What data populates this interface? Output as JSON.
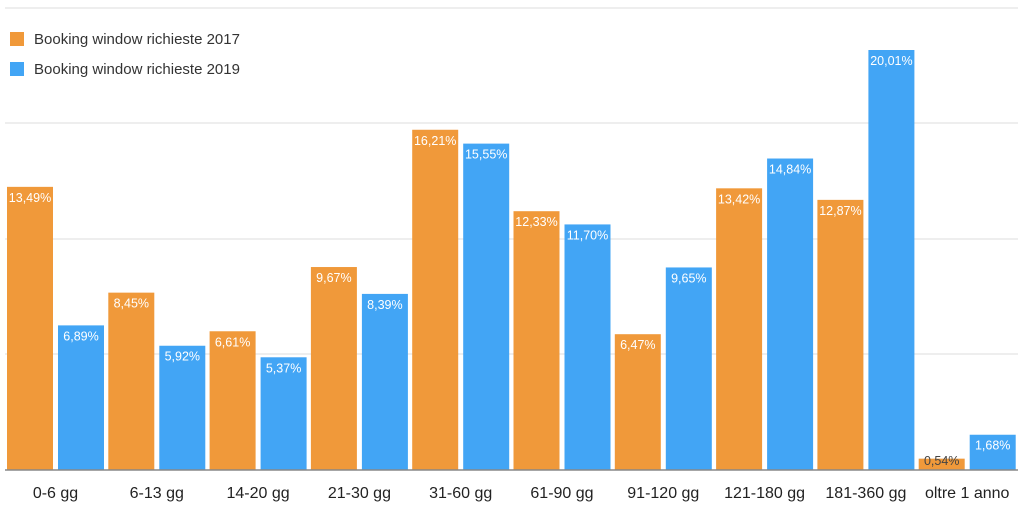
{
  "chart_data": {
    "type": "bar",
    "categories": [
      "0-6 gg",
      "6-13 gg",
      "14-20 gg",
      "21-30 gg",
      "31-60 gg",
      "61-90 gg",
      "91-120 gg",
      "121-180 gg",
      "181-360 gg",
      "oltre 1 anno"
    ],
    "series": [
      {
        "name": "Booking window richieste 2017",
        "color": "#f0993a",
        "values": [
          13.49,
          8.45,
          6.61,
          9.67,
          16.21,
          12.33,
          6.47,
          13.42,
          12.87,
          0.54
        ],
        "labels": [
          "13,49%",
          "8,45%",
          "6,61%",
          "9,67%",
          "16,21%",
          "12,33%",
          "6,47%",
          "13,42%",
          "12,87%",
          "0,54%"
        ]
      },
      {
        "name": "Booking window richieste 2019",
        "color": "#42a5f5",
        "values": [
          6.89,
          5.92,
          5.37,
          8.39,
          15.55,
          11.7,
          9.65,
          14.84,
          20.01,
          1.68
        ],
        "labels": [
          "6,89%",
          "5,92%",
          "5,37%",
          "8,39%",
          "15,55%",
          "11,70%",
          "9,65%",
          "14,84%",
          "20,01%",
          "1,68%"
        ]
      }
    ],
    "ylim": [
      0,
      20.5
    ],
    "grid": true,
    "legend_position": "top-left"
  }
}
